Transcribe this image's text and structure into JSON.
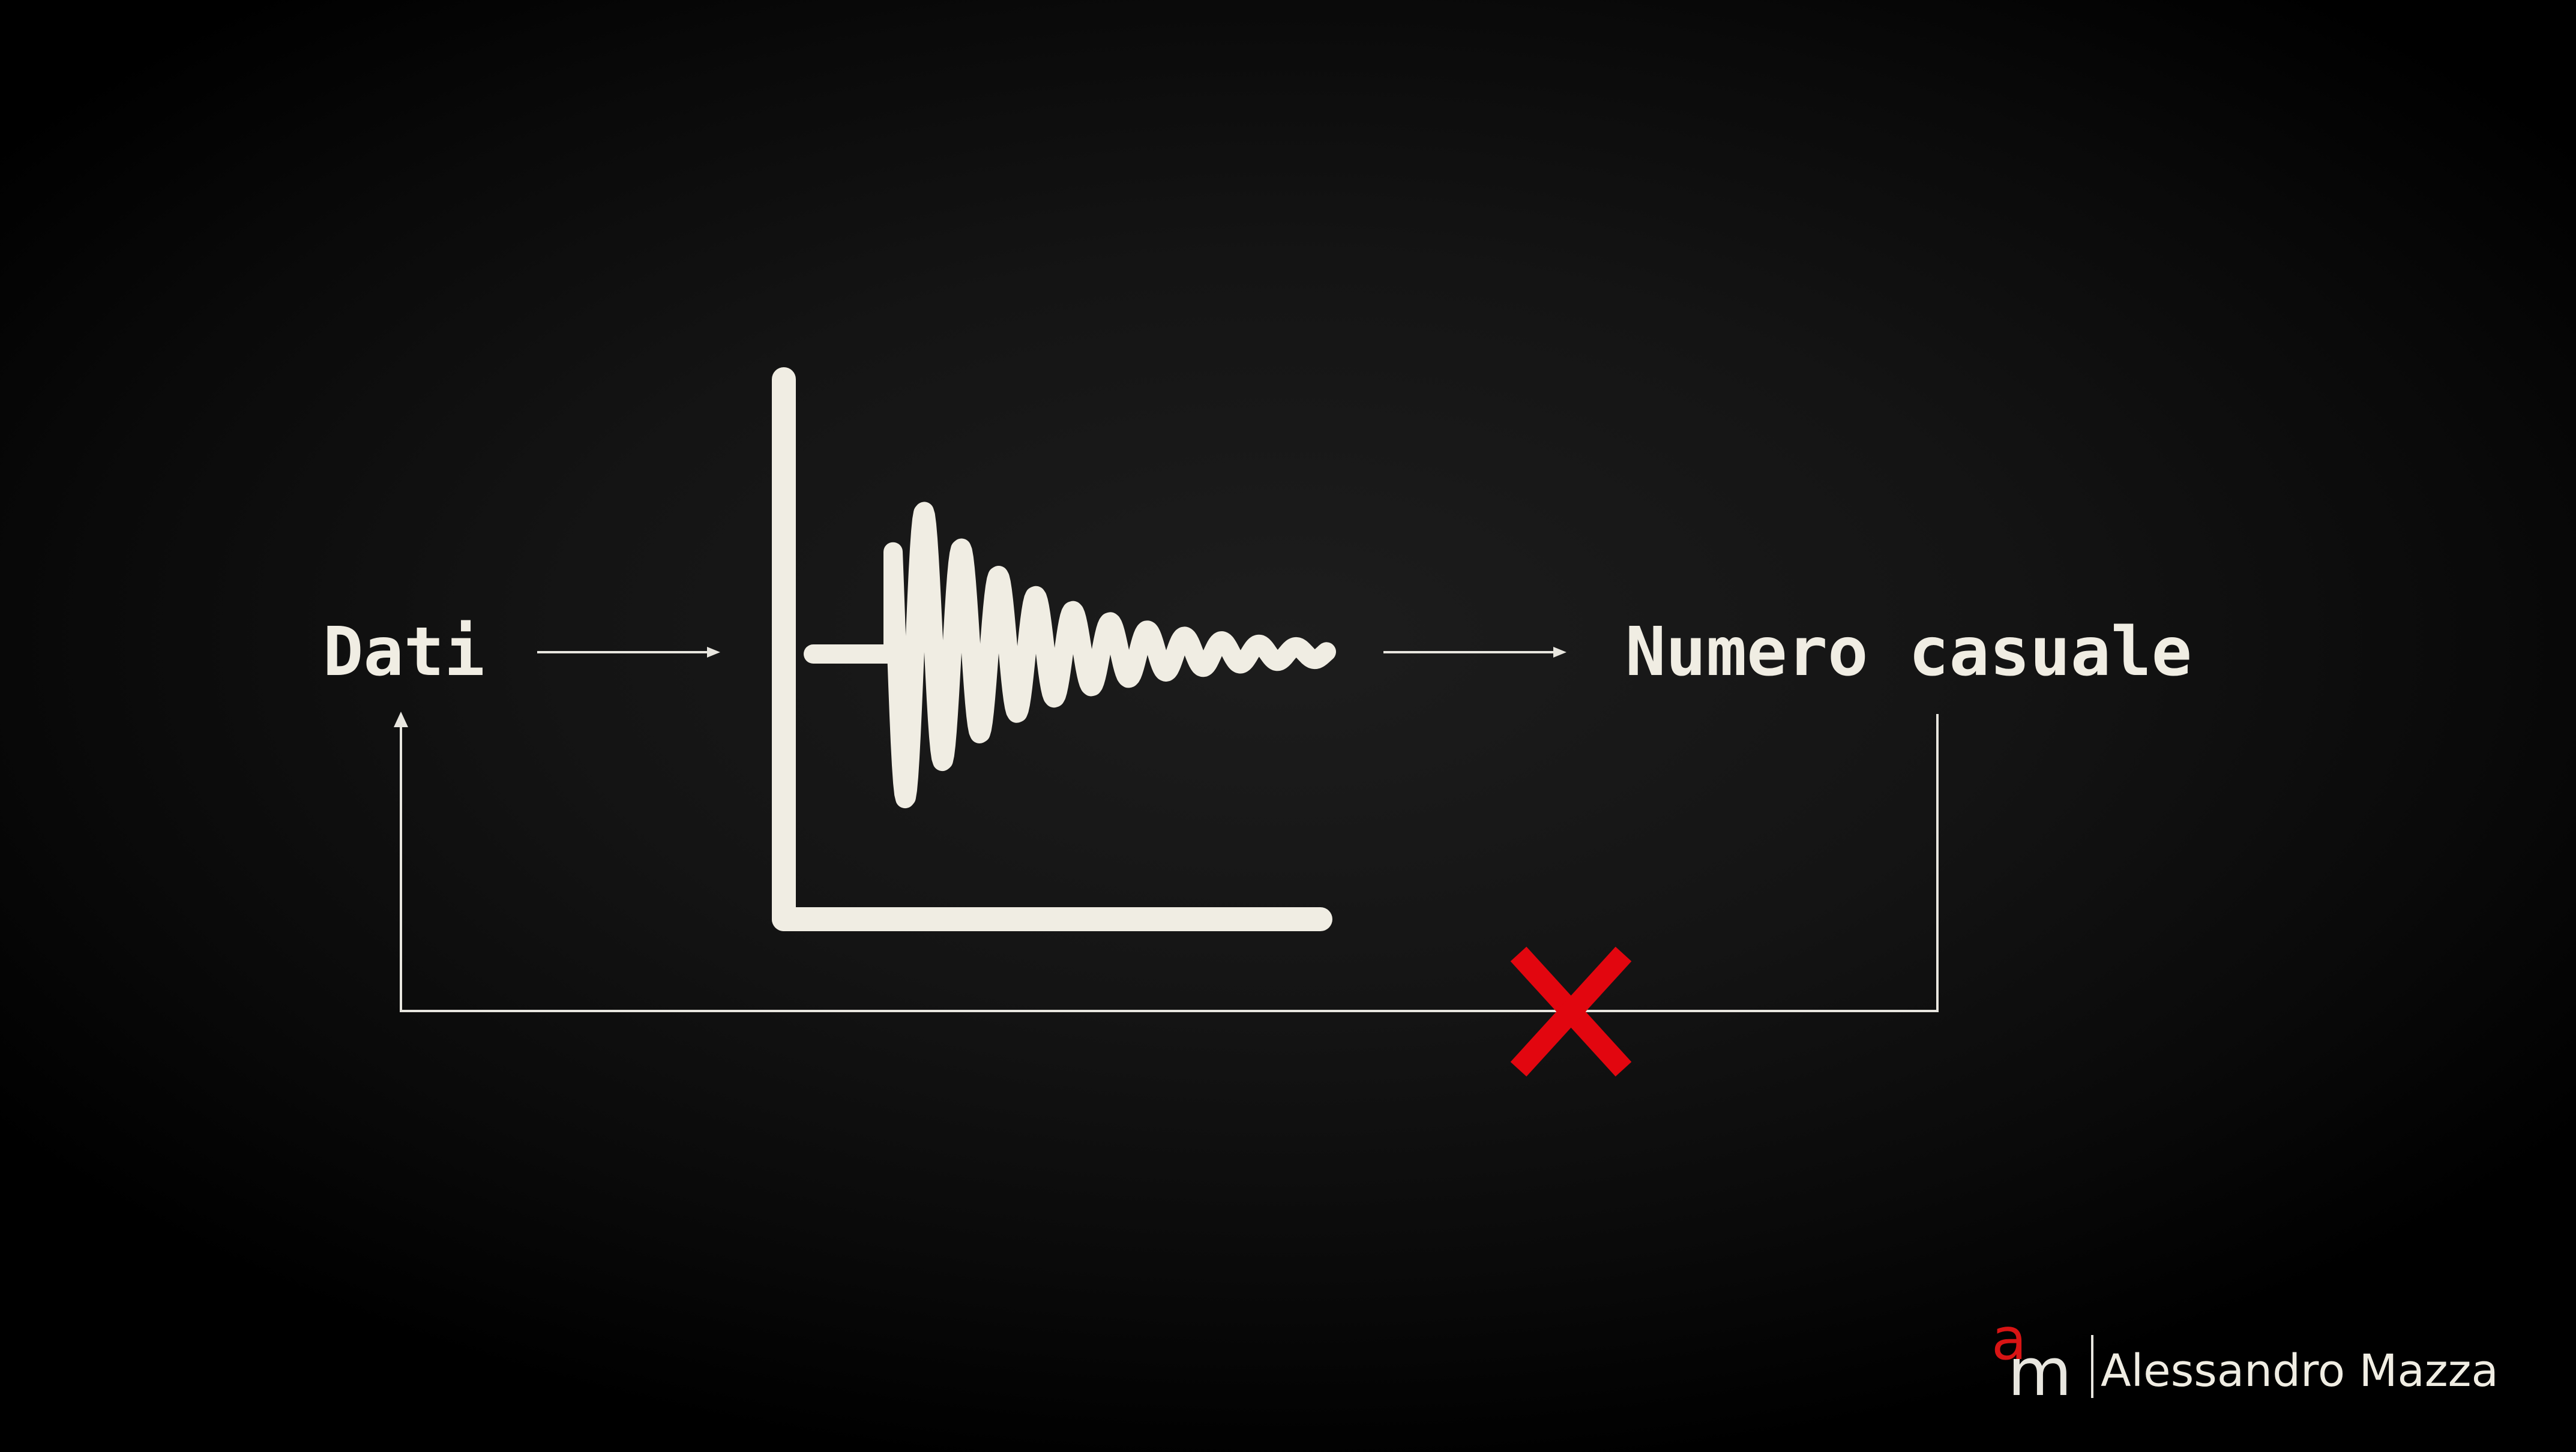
{
  "colors": {
    "background": "#141414",
    "foreground": "#f0ede3",
    "line": "#e8e6df",
    "cross": "#e2060f"
  },
  "nodes": {
    "input_label": "Dati",
    "output_label": "Numero casuale"
  },
  "feedback": {
    "status": "blocked",
    "marker_icon": "cross-icon"
  },
  "central_icon": "damped-oscillation-chart-icon",
  "brand": {
    "monogram_a": "a",
    "monogram_m": "m",
    "name": "Alessandro Mazza"
  }
}
